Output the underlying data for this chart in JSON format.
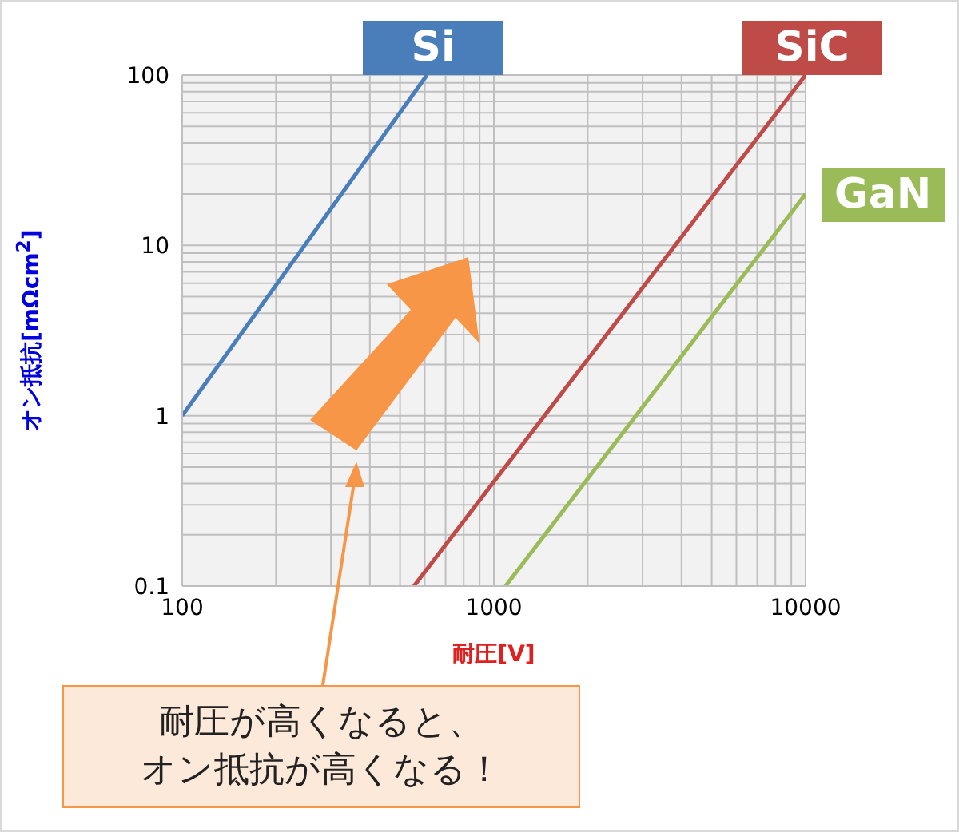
{
  "chart_data": {
    "type": "line",
    "xlabel": "耐圧[V]",
    "ylabel": "オン抵抗[mΩcm$^{2}$]",
    "log": "xy",
    "xlim": [
      100,
      10000
    ],
    "ylim": [
      0.1,
      100
    ],
    "xticks": [
      100,
      {
        "value": 200,
        "label": null
      },
      {
        "value": 300,
        "label": null
      },
      {
        "value": 400,
        "label": null
      },
      {
        "value": 500,
        "label": null
      },
      {
        "value": 600,
        "label": null
      },
      {
        "value": 700,
        "label": null
      },
      {
        "value": 800,
        "label": null
      },
      {
        "value": 900,
        "label": null
      },
      1000,
      {
        "value": 2000,
        "label": null
      },
      {
        "value": 3000,
        "label": null
      },
      {
        "value": 4000,
        "label": null
      },
      {
        "value": 5000,
        "label": null
      },
      {
        "value": 6000,
        "label": null
      },
      {
        "value": 7000,
        "label": null
      },
      {
        "value": 8000,
        "label": null
      },
      {
        "value": 9000,
        "label": null
      },
      10000
    ],
    "yticks": [
      0.1,
      {
        "value": 0.2,
        "label": null
      },
      {
        "value": 0.3,
        "label": null
      },
      {
        "value": 0.4,
        "label": null
      },
      {
        "value": 0.5,
        "label": null
      },
      {
        "value": 0.6,
        "label": null
      },
      {
        "value": 0.7,
        "label": null
      },
      {
        "value": 0.8,
        "label": null
      },
      {
        "value": 0.9,
        "label": null
      },
      1,
      {
        "value": 2,
        "label": null
      },
      {
        "value": 3,
        "label": null
      },
      {
        "value": 4,
        "label": null
      },
      {
        "value": 5,
        "label": null
      },
      {
        "value": 6,
        "label": null
      },
      {
        "value": 7,
        "label": null
      },
      {
        "value": 8,
        "label": null
      },
      {
        "value": 9,
        "label": null
      },
      10,
      {
        "value": 20,
        "label": null
      },
      {
        "value": 30,
        "label": null
      },
      {
        "value": 40,
        "label": null
      },
      {
        "value": 50,
        "label": null
      },
      {
        "value": 60,
        "label": null
      },
      {
        "value": 70,
        "label": null
      },
      {
        "value": 80,
        "label": null
      },
      {
        "value": 90,
        "label": null
      },
      100
    ],
    "grid": true,
    "legend": false,
    "marker": "none",
    "line_style": "solid",
    "series": [
      {
        "name": "Si",
        "color": "#4a7ebb",
        "x": [
          100,
          610
        ],
        "values": [
          1,
          100
        ]
      },
      {
        "name": "SiC",
        "color": "#be4b48",
        "x": [
          554,
          10000
        ],
        "values": [
          0.1,
          100
        ]
      },
      {
        "name": "GaN",
        "color": "#9bbb59",
        "x": [
          1090,
          10000
        ],
        "values": [
          0.1,
          20
        ]
      }
    ],
    "annotations": [
      "耐圧が高くなると、",
      "オン抵抗が高くなる！"
    ]
  }
}
